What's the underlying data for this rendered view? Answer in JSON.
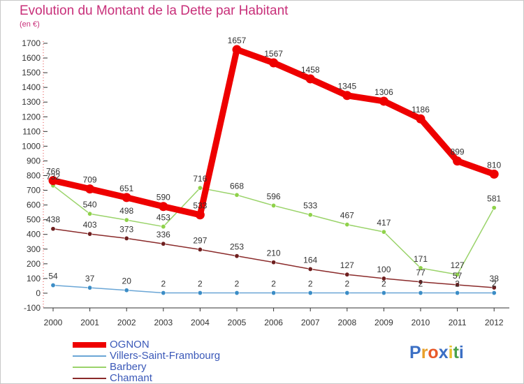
{
  "title": "Evolution du Montant de la Dette par Habitant",
  "subtitle": "(en €)",
  "brand": {
    "logo_text": "Proxiti",
    "letter_colors": [
      "#3b6fc4",
      "#e8a02a",
      "#e85a2a",
      "#3b6fc4",
      "#e8c02a",
      "#4aa04a"
    ]
  },
  "chart_data": {
    "type": "line",
    "title": "Evolution du Montant de la Dette par Habitant",
    "subtitle": "(en €)",
    "xlabel": "",
    "ylabel": "",
    "ylim": [
      -100,
      1700
    ],
    "ytick_step": 100,
    "grid": false,
    "categories": [
      "2000",
      "2001",
      "2002",
      "2003",
      "2004",
      "2005",
      "2006",
      "2007",
      "2008",
      "2009",
      "2010",
      "2011",
      "2012"
    ],
    "series": [
      {
        "name": "OGNON",
        "color": "#ee0000",
        "emphasis": true,
        "values": [
          766,
          709,
          651,
          590,
          533,
          1657,
          1567,
          1458,
          1345,
          1306,
          1186,
          899,
          810
        ],
        "labels": [
          "766",
          "709",
          "651",
          "590",
          "533",
          "1657",
          "1567",
          "1458",
          "1345",
          "1306",
          "1186",
          "899",
          "810"
        ]
      },
      {
        "name": "Villers-Saint-Frambourg",
        "color": "#6aa6d6",
        "marker": "#3c8dc6",
        "values": [
          54,
          37,
          20,
          2,
          2,
          2,
          2,
          2,
          2,
          2,
          2,
          2,
          2
        ],
        "labels": [
          "54",
          "37",
          "20",
          "2",
          "2",
          "2",
          "2",
          "2",
          "2",
          "2",
          "2",
          "2",
          "2"
        ]
      },
      {
        "name": "Barbery",
        "color": "#9ad36a",
        "marker": "#8fd24a",
        "values": [
          732,
          540,
          498,
          453,
          716,
          668,
          596,
          533,
          467,
          417,
          171,
          127,
          581
        ],
        "labels": [
          "732",
          "540",
          "498",
          "453",
          "716",
          "668",
          "596",
          "533",
          "467",
          "417",
          "171",
          "127",
          "581"
        ]
      },
      {
        "name": "Chamant",
        "color": "#8a2a2a",
        "marker": "#6e1f1f",
        "values": [
          438,
          403,
          373,
          336,
          297,
          253,
          210,
          164,
          127,
          100,
          77,
          57,
          38
        ],
        "labels": [
          "438",
          "403",
          "373",
          "336",
          "297",
          "253",
          "210",
          "164",
          "127",
          "100",
          "77",
          "57",
          "38"
        ]
      }
    ]
  }
}
